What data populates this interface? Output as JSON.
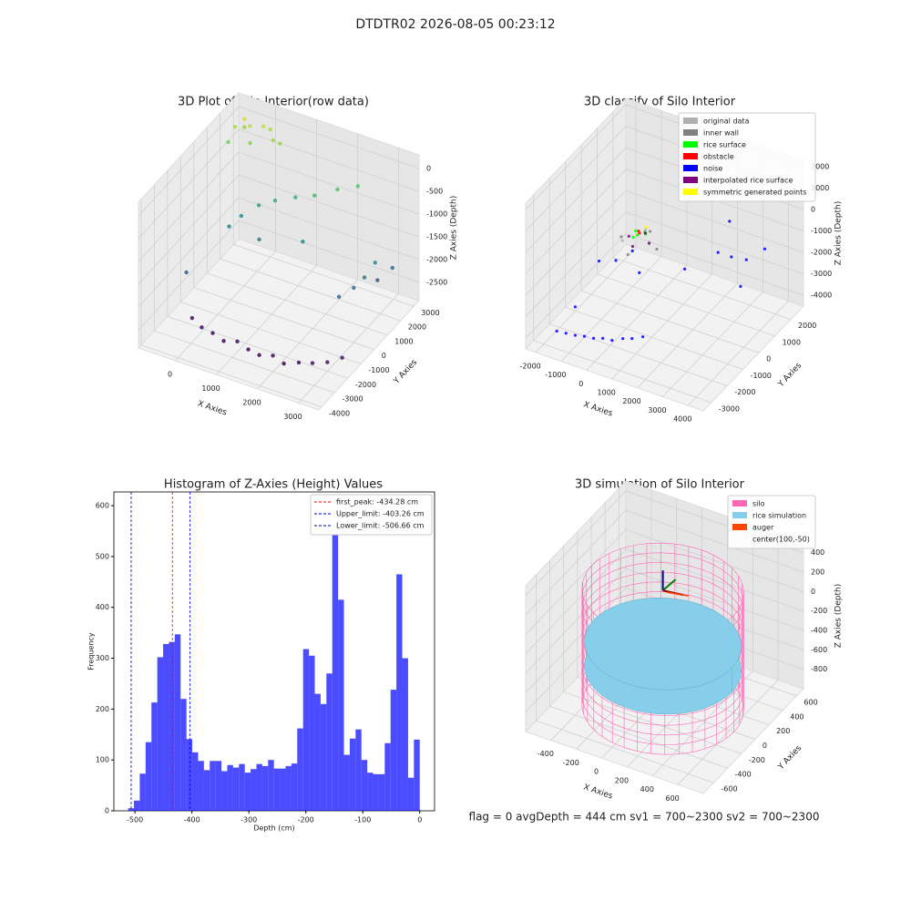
{
  "title": "DTDTR02 2026-08-05 00:23:12",
  "footer": "flag = 0     avgDepth = 444 cm  sv1 = 700~2300  sv2 = 700~2300",
  "chart_data": [
    {
      "type": "scatter3d",
      "title": "3D Plot of Silo Interior(row data)",
      "xlabel": "X Axies",
      "ylabel": "Y Axies",
      "zlabel": "Z Axies (Depth)",
      "xlim": [
        -900,
        3500
      ],
      "ylim": [
        -4200,
        3400
      ],
      "zlim": [
        -2900,
        300
      ],
      "xticks": [
        0,
        1000,
        2000,
        3000
      ],
      "yticks": [
        -4000,
        -3000,
        -2000,
        -1000,
        0,
        1000,
        2000,
        3000
      ],
      "zticks": [
        -2500,
        -2000,
        -1500,
        -1000,
        -500,
        0
      ],
      "colormap": "viridis",
      "x": [
        -300,
        0,
        300,
        600,
        900,
        1200,
        1500,
        1800,
        2100,
        2400,
        2700,
        3000,
        3200,
        -600,
        2800,
        3000,
        3100,
        3200,
        3300,
        3000,
        0,
        300,
        600,
        1000,
        1400,
        1800,
        2200,
        -200,
        500,
        1500,
        -700,
        -400,
        -100,
        200,
        -600,
        -300,
        0,
        -500,
        300,
        -800
      ],
      "y": [
        -2000,
        -2200,
        -2300,
        -2400,
        -2300,
        -2400,
        -2500,
        -2400,
        -2500,
        -2300,
        -2200,
        -2000,
        -1500,
        -1500,
        -500,
        0,
        500,
        1000,
        2000,
        1800,
        800,
        1200,
        1500,
        1800,
        2000,
        2500,
        2800,
        500,
        600,
        800,
        2500,
        2700,
        2800,
        2600,
        2900,
        2400,
        3000,
        2600,
        2800,
        2300
      ],
      "z": [
        -2750,
        -2800,
        -2800,
        -2850,
        -2800,
        -2850,
        -2850,
        -2800,
        -2850,
        -2800,
        -2750,
        -2700,
        -2700,
        -2000,
        -1800,
        -1700,
        -1600,
        -1400,
        -1800,
        -2100,
        -1300,
        -1100,
        -1000,
        -900,
        -800,
        -700,
        -600,
        -1500,
        -1600,
        -1400,
        -100,
        -50,
        0,
        -150,
        -200,
        -300,
        -100,
        100,
        -250,
        -400
      ]
    },
    {
      "type": "scatter3d",
      "title": "3D classify of Silo Interior",
      "xlabel": "X Axies",
      "ylabel": "Y Axies",
      "zlabel": "Z Axies (Depth)",
      "xlim": [
        -2400,
        4600
      ],
      "ylim": [
        -3500,
        2800
      ],
      "zlim": [
        -4500,
        2300
      ],
      "xticks": [
        -2000,
        -1000,
        0,
        1000,
        2000,
        3000,
        4000
      ],
      "yticks": [
        -3000,
        -2000,
        -1000,
        0,
        1000,
        2000
      ],
      "zticks": [
        -4000,
        -3000,
        -2000,
        -1000,
        0,
        1000,
        2000
      ],
      "series": [
        {
          "name": "original data",
          "color": "#b0b0b0",
          "x": [
            500,
            900,
            100
          ],
          "y": [
            -600,
            -1000,
            -1400
          ],
          "z": [
            0,
            -100,
            -50
          ]
        },
        {
          "name": "inner wall",
          "color": "#808080",
          "x": [
            1200,
            -200,
            500,
            500
          ],
          "y": [
            -1000,
            -1000,
            -300,
            -1700
          ],
          "z": [
            -300,
            -300,
            -300,
            -300
          ]
        },
        {
          "name": "rice surface",
          "color": "#00ff00",
          "x": [
            300,
            500,
            700,
            400,
            600
          ],
          "y": [
            -900,
            -1100,
            -900,
            -1200,
            -800
          ],
          "z": [
            100,
            150,
            120,
            80,
            90
          ]
        },
        {
          "name": "obstacle",
          "color": "#ff0000",
          "x": [
            450,
            550
          ],
          "y": [
            -950,
            -1050
          ],
          "z": [
            200,
            220
          ]
        },
        {
          "name": "noise",
          "color": "#0000ff",
          "x": [
            -1800,
            -1500,
            -1200,
            -900,
            -600,
            -300,
            0,
            300,
            600,
            900,
            -1700,
            -1200,
            -600,
            -200,
            200,
            2800,
            3200,
            3600,
            4000,
            4200,
            2500,
            1800
          ],
          "y": [
            -2500,
            -2400,
            -2300,
            -2200,
            -2100,
            -2000,
            -1900,
            -1700,
            -1600,
            -1400,
            -1500,
            -800,
            -700,
            -300,
            -500,
            300,
            500,
            800,
            -200,
            1000,
            1500,
            -200
          ],
          "z": [
            -4200,
            -4250,
            -4300,
            -4300,
            -4350,
            -4300,
            -4350,
            -4300,
            -4250,
            -4200,
            -3800,
            -2000,
            -1800,
            -1500,
            -2200,
            -800,
            -1000,
            -1200,
            -1500,
            -600,
            -400,
            -1600
          ]
        },
        {
          "name": "interpolated rice surface",
          "color": "#800080",
          "x": [
            900,
            100,
            500,
            500
          ],
          "y": [
            -1000,
            -1000,
            -600,
            -1400
          ],
          "z": [
            -150,
            -150,
            -150,
            -150
          ]
        },
        {
          "name": "symmetric generated points",
          "color": "#ffff00",
          "x": [
            600
          ],
          "y": [
            -700
          ],
          "z": [
            250
          ]
        }
      ]
    },
    {
      "type": "histogram",
      "title": "Histogram of Z-Axies (Height) Values",
      "xlabel": "Depth (cm)",
      "ylabel": "Frequency",
      "color": "#0000ff",
      "xlim": [
        -537,
        26
      ],
      "ylim": [
        0,
        627
      ],
      "xticks": [
        -500,
        -400,
        -300,
        -200,
        -100,
        0
      ],
      "yticks": [
        0,
        100,
        200,
        300,
        400,
        500,
        600
      ],
      "bins": [
        -512,
        -501.76,
        -491.52,
        -481.28,
        -471.04,
        -460.8,
        -450.56,
        -440.32,
        -430.08,
        -419.84,
        -409.6,
        -399.36,
        -389.12,
        -378.88,
        -368.64,
        -358.4,
        -348.16,
        -337.92,
        -327.68,
        -317.44,
        -307.2,
        -296.96,
        -286.72,
        -276.48,
        -266.24,
        -256,
        -245.76,
        -235.52,
        -225.28,
        -215.04,
        -204.8,
        -194.56,
        -184.32,
        -174.08,
        -163.84,
        -153.6,
        -143.36,
        -133.12,
        -122.88,
        -112.64,
        -102.4,
        -92.16,
        -81.92,
        -71.68,
        -61.44,
        -51.2,
        -40.96,
        -30.72,
        -20.48,
        -10.24,
        0
      ],
      "values": [
        5,
        20,
        73,
        135,
        213,
        302,
        328,
        332,
        347,
        220,
        141,
        115,
        98,
        80,
        98,
        98,
        78,
        90,
        85,
        92,
        75,
        82,
        92,
        88,
        100,
        83,
        83,
        88,
        93,
        162,
        318,
        305,
        230,
        210,
        270,
        600,
        415,
        110,
        142,
        160,
        100,
        75,
        72,
        72,
        133,
        238,
        465,
        300,
        65,
        140
      ],
      "vlines": [
        {
          "label": "first_peak: -434.28 cm",
          "value": -434.28,
          "color": "#ff0000"
        },
        {
          "label": "Upper_limit: -403.26 cm",
          "value": -403.26,
          "color": "#0000ff"
        },
        {
          "label": "Lower_limit: -506.66 cm",
          "value": -506.66,
          "color": "#0000aa"
        }
      ]
    },
    {
      "type": "simulation3d",
      "title": "3D simulation of Silo Interior",
      "xlabel": "X Axies",
      "ylabel": "Y Axies",
      "zlabel": "Z Axies (Depth)",
      "xlim": [
        -600,
        800
      ],
      "ylim": [
        -750,
        700
      ],
      "zlim": [
        -1000,
        500
      ],
      "xticks": [
        -400,
        -200,
        0,
        200,
        400,
        600
      ],
      "yticks": [
        -600,
        -400,
        -200,
        0,
        200,
        400,
        600
      ],
      "zticks": [
        -800,
        -600,
        -400,
        -200,
        0,
        200,
        400
      ],
      "series": [
        {
          "name": "silo",
          "color": "#ff69b4"
        },
        {
          "name": "rice simulation",
          "color": "#87ceeb"
        },
        {
          "name": "auger",
          "color": "#ff4500"
        },
        {
          "name": "center(100,-50)"
        }
      ],
      "center": [
        100,
        -50
      ],
      "radius": 560,
      "silo_z": [
        -950,
        250
      ],
      "rice_z": [
        -550,
        -300
      ]
    }
  ]
}
